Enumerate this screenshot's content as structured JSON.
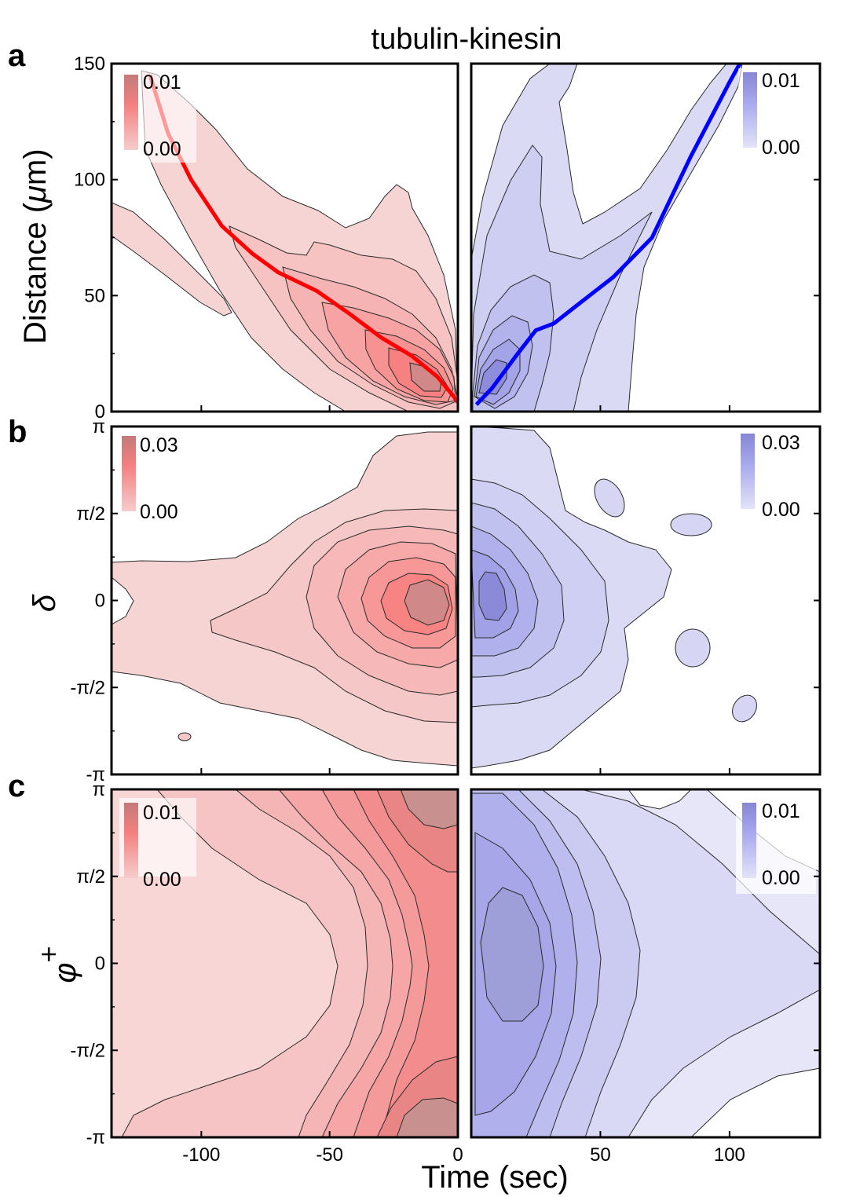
{
  "figure_title": "tubulin-kinesin",
  "chart_data": [
    {
      "panel": "a",
      "type": "contour",
      "xlabel": "Time (sec)",
      "ylabel": "Distance (μm)",
      "ylabel_text": "Distance (",
      "ylabel_mu": "μ",
      "ylabel_unit": "m)",
      "ylim": [
        0,
        150
      ],
      "y_ticks": [
        0,
        50,
        100,
        150
      ],
      "y_tick_labels": [
        "0",
        "50",
        "100",
        "150"
      ],
      "x_ticks": [
        -100,
        -50,
        0,
        50,
        100
      ],
      "left": {
        "name": "negative time (red)",
        "color": "#f26b6b",
        "xlim": [
          -135,
          0
        ],
        "colorbar": {
          "max": "0.01",
          "min": "0.00"
        },
        "trajectory": {
          "color": "#ff0000",
          "points": [
            [
              -120,
              145
            ],
            [
              -113,
              120
            ],
            [
              -104,
              100
            ],
            [
              -92,
              80
            ],
            [
              -80,
              68
            ],
            [
              -70,
              60
            ],
            [
              -55,
              52
            ],
            [
              -42,
              42
            ],
            [
              -30,
              32
            ],
            [
              -18,
              24
            ],
            [
              -8,
              15
            ],
            [
              -2,
              7
            ],
            [
              0,
              4
            ]
          ]
        }
      },
      "right": {
        "name": "positive time (blue)",
        "color": "#6a6ae8",
        "xlim": [
          0,
          135
        ],
        "colorbar": {
          "max": "0.01",
          "min": "0.00"
        },
        "trajectory": {
          "color": "#0000ff",
          "points": [
            [
              2,
              3
            ],
            [
              8,
              10
            ],
            [
              18,
              25
            ],
            [
              25,
              35
            ],
            [
              32,
              38
            ],
            [
              40,
              45
            ],
            [
              55,
              58
            ],
            [
              70,
              75
            ],
            [
              85,
              110
            ],
            [
              100,
              142
            ],
            [
              104,
              150
            ]
          ]
        }
      }
    },
    {
      "panel": "b",
      "type": "contour",
      "xlabel": "Time (sec)",
      "ylabel": "δ",
      "ylim": [
        -3.1416,
        3.1416
      ],
      "y_ticks": [
        -3.1416,
        -1.5708,
        0,
        1.5708,
        3.1416
      ],
      "y_tick_labels": [
        "-π",
        "-π/2",
        "0",
        "π/2",
        "π"
      ],
      "x_ticks": [
        -100,
        -50,
        0,
        50,
        100
      ],
      "left": {
        "color": "#f26b6b",
        "xlim": [
          -135,
          0
        ],
        "colorbar": {
          "max": "0.03",
          "min": "0.00"
        }
      },
      "right": {
        "color": "#6a6ae8",
        "xlim": [
          0,
          135
        ],
        "colorbar": {
          "max": "0.03",
          "min": "0.00"
        }
      }
    },
    {
      "panel": "c",
      "type": "contour",
      "xlabel": "Time (sec)",
      "ylabel": "φ+",
      "ylabel_symbol": "φ",
      "ylabel_sup": "+",
      "ylim": [
        -3.1416,
        3.1416
      ],
      "y_ticks": [
        -3.1416,
        -1.5708,
        0,
        1.5708,
        3.1416
      ],
      "y_tick_labels": [
        "-π",
        "-π/2",
        "0",
        "π/2",
        "π"
      ],
      "x_ticks": [
        -100,
        -50,
        0,
        50,
        100
      ],
      "x_tick_labels_left": [
        "-100",
        "-50",
        "0"
      ],
      "x_tick_labels_right": [
        "0",
        "50",
        "100"
      ],
      "left": {
        "color": "#f26b6b",
        "xlim": [
          -135,
          0
        ],
        "colorbar": {
          "max": "0.01",
          "min": "0.00"
        }
      },
      "right": {
        "color": "#6a6ae8",
        "xlim": [
          0,
          135
        ],
        "colorbar": {
          "max": "0.01",
          "min": "0.00"
        }
      }
    }
  ]
}
